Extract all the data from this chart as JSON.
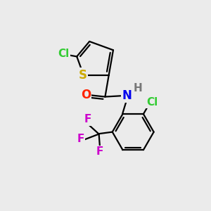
{
  "background_color": "#ebebeb",
  "bond_color": "#000000",
  "bond_width": 1.6,
  "atoms": {
    "S": {
      "color": "#ccaa00",
      "fontsize": 12,
      "fontweight": "bold"
    },
    "Cl_top": {
      "color": "#33cc33",
      "fontsize": 11,
      "fontweight": "bold"
    },
    "Cl_right": {
      "color": "#33cc33",
      "fontsize": 11,
      "fontweight": "bold"
    },
    "O": {
      "color": "#ff2200",
      "fontsize": 12,
      "fontweight": "bold"
    },
    "N": {
      "color": "#0000ee",
      "fontsize": 12,
      "fontweight": "bold"
    },
    "H": {
      "color": "#777777",
      "fontsize": 11,
      "fontweight": "bold"
    },
    "F": {
      "color": "#cc00cc",
      "fontsize": 11,
      "fontweight": "bold"
    }
  },
  "figsize": [
    3.0,
    3.0
  ],
  "dpi": 100
}
